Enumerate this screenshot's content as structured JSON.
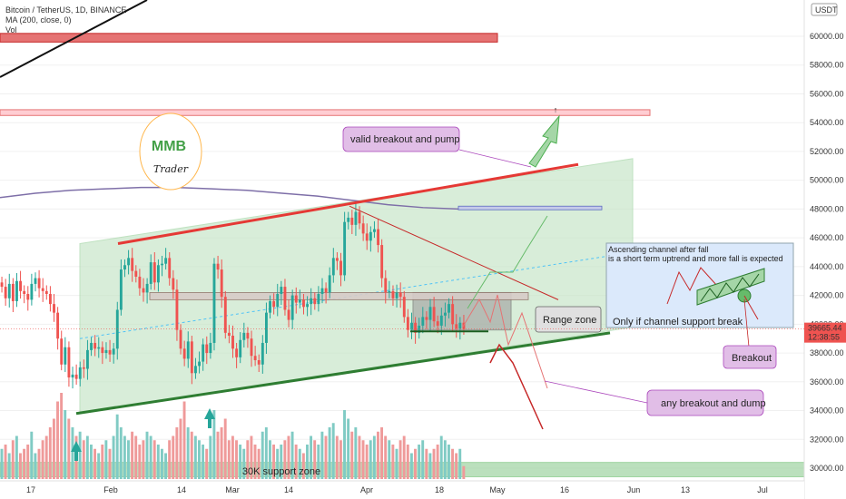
{
  "header": {
    "symbol_line": "Bitcoin / TetherUS, 1D, BINANCE",
    "ma_line": "MA (200, close, 0)",
    "vol_line": "Vol",
    "currency": "USDT"
  },
  "price": {
    "last": "39665.44",
    "countdown": "12:38:55",
    "last_value": 39665.44
  },
  "logo": {
    "letters": "MMB",
    "sub": "Trader"
  },
  "annotations": {
    "valid_breakout": "valid breakout and pump",
    "range_zone": "Range zone",
    "breakout_dump": "any breakout and dump",
    "support_zone": "30K support zone",
    "inset_line1": "Ascending channel after fall",
    "inset_line2": "is a short term uptrend and more fall is expected",
    "inset_line3": "Only if channel support break",
    "breakout": "Breakout"
  },
  "colors": {
    "up": "#26a69a",
    "down": "#ef5350",
    "channel_fill": "#c8e6c9",
    "resistance": "#e57373",
    "support_line": "#2e7d32",
    "ma": "#7e6fa8",
    "range_box": "#bdbdbd",
    "callout_fill": "#e1bee7"
  },
  "chart_data": {
    "type": "candlestick",
    "title": "Bitcoin / TetherUS, 1D, BINANCE",
    "y_axis": {
      "range": [
        29400,
        61200
      ],
      "ticks": [
        "30000.00",
        "32000.00",
        "34000.00",
        "36000.00",
        "38000.00",
        "40000.00",
        "42000.00",
        "44000.00",
        "46000.00",
        "48000.00",
        "50000.00",
        "52000.00",
        "54000.00",
        "56000.00",
        "58000.00",
        "60000.00"
      ]
    },
    "x_axis": {
      "ticks": [
        "17",
        "Feb",
        "14",
        "Mar",
        "14",
        "Apr",
        "18",
        "May",
        "16",
        "Jun",
        "13",
        "Jul"
      ]
    },
    "candles_close": [
      42600,
      41800,
      42800,
      41600,
      43000,
      42300,
      42100,
      41700,
      42800,
      43200,
      42500,
      42300,
      42100,
      41400,
      40800,
      39000,
      37200,
      38400,
      36300,
      36500,
      36200,
      37000,
      36900,
      38200,
      38700,
      38300,
      38400,
      38000,
      38200,
      37900,
      38300,
      41000,
      43800,
      44100,
      44600,
      43700,
      43300,
      42500,
      42200,
      42800,
      44300,
      42900,
      44100,
      44200,
      44600,
      43200,
      42400,
      39600,
      38300,
      37600,
      38800,
      36600,
      37100,
      37400,
      38600,
      38000,
      38700,
      44200,
      43800,
      41900,
      39400,
      39200,
      38300,
      37700,
      38900,
      39400,
      39000,
      37800,
      37500,
      37200,
      38700,
      40800,
      41600,
      41200,
      42100,
      42600,
      41000,
      40300,
      42000,
      41500,
      41700,
      41200,
      41400,
      41800,
      41400,
      42100,
      42500,
      42200,
      43400,
      44600,
      44400,
      43400,
      47100,
      47400,
      46900,
      47800,
      47000,
      46300,
      45800,
      46400,
      46600,
      45500,
      43200,
      42200,
      42300,
      41800,
      42200,
      41900,
      40500,
      39600,
      40100,
      39400,
      39900,
      40500,
      40300,
      41200,
      40200,
      39900,
      40600,
      40800,
      41400,
      40000,
      39700,
      40100,
      39665.44
    ],
    "volume_relative": [
      0.35,
      0.4,
      0.3,
      0.45,
      0.5,
      0.3,
      0.35,
      0.4,
      0.55,
      0.3,
      0.35,
      0.45,
      0.5,
      0.6,
      0.7,
      0.9,
      1.0,
      0.8,
      0.7,
      0.6,
      0.5,
      0.55,
      0.45,
      0.5,
      0.4,
      0.35,
      0.3,
      0.4,
      0.45,
      0.35,
      0.5,
      0.75,
      0.6,
      0.5,
      0.45,
      0.55,
      0.5,
      0.4,
      0.45,
      0.55,
      0.5,
      0.45,
      0.4,
      0.35,
      0.3,
      0.45,
      0.5,
      0.6,
      0.7,
      0.9,
      0.6,
      0.55,
      0.5,
      0.45,
      0.4,
      0.35,
      0.5,
      0.8,
      0.55,
      0.6,
      0.7,
      0.45,
      0.5,
      0.45,
      0.4,
      0.35,
      0.45,
      0.5,
      0.4,
      0.35,
      0.55,
      0.6,
      0.45,
      0.4,
      0.35,
      0.4,
      0.45,
      0.5,
      0.55,
      0.4,
      0.35,
      0.3,
      0.4,
      0.5,
      0.45,
      0.4,
      0.55,
      0.5,
      0.6,
      0.65,
      0.5,
      0.45,
      0.8,
      0.7,
      0.55,
      0.6,
      0.5,
      0.45,
      0.4,
      0.45,
      0.5,
      0.55,
      0.6,
      0.5,
      0.45,
      0.4,
      0.35,
      0.45,
      0.5,
      0.4,
      0.3,
      0.35,
      0.4,
      0.45,
      0.35,
      0.3,
      0.35,
      0.4,
      0.5,
      0.45,
      0.4,
      0.35,
      0.3,
      0.35,
      0.15
    ],
    "levels": {
      "resistance_top": 60000,
      "resistance_upper": 54800,
      "range_zone_top": 42200,
      "range_zone_bottom": 39600,
      "support_zone": 30000,
      "inner_resistance_line": 48100
    },
    "channel": {
      "lower_start": 33800,
      "lower_end": 39800,
      "upper_start": 45600,
      "upper_end": 51500
    },
    "ma_200": [
      48800,
      49100,
      49300,
      49400,
      49500,
      49500,
      49400,
      49300,
      49100,
      48900,
      48600,
      48300,
      48100,
      48000
    ]
  }
}
